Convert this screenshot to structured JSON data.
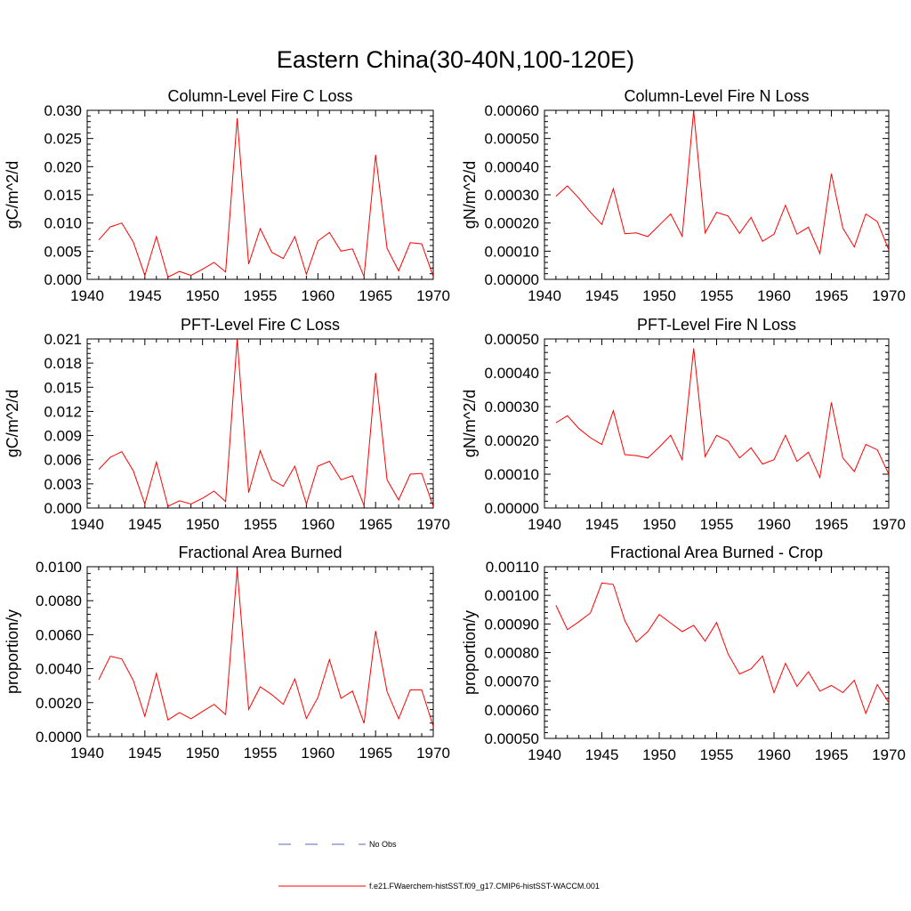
{
  "figure": {
    "title": "Eastern China(30-40N,100-120E)"
  },
  "legend": {
    "entries": [
      {
        "label": "No Obs",
        "color": "#5566bb",
        "dash": true
      },
      {
        "label": "f.e21.FWaerchem-histSST.f09_g17.CMIP6-histSST-WACCM.001",
        "color": "#ff0000",
        "dash": false
      }
    ]
  },
  "chart_data": [
    {
      "type": "line",
      "title": "Column-Level Fire C Loss",
      "ylabel": "gC/m^2/d",
      "xlim": [
        1940,
        1970
      ],
      "ylim": [
        0,
        0.03
      ],
      "xticks": [
        "1940",
        "1945",
        "1950",
        "1955",
        "1960",
        "1965",
        "1970"
      ],
      "yticks": [
        "0.000",
        "0.005",
        "0.010",
        "0.015",
        "0.020",
        "0.025",
        "0.030"
      ],
      "x": [
        1941,
        1942,
        1943,
        1944,
        1945,
        1946,
        1947,
        1948,
        1949,
        1950,
        1951,
        1952,
        1953,
        1954,
        1955,
        1956,
        1957,
        1958,
        1959,
        1960,
        1961,
        1962,
        1963,
        1964,
        1965,
        1966,
        1967,
        1968,
        1969,
        1970
      ],
      "series": [
        {
          "color": "#ff0000",
          "values": [
            0.007,
            0.0093,
            0.01,
            0.0066,
            0.0007,
            0.0076,
            0.0004,
            0.0014,
            0.0007,
            0.0018,
            0.003,
            0.0013,
            0.0286,
            0.0027,
            0.009,
            0.0048,
            0.0037,
            0.0076,
            0.0009,
            0.0068,
            0.0083,
            0.005,
            0.0054,
            0.0005,
            0.0221,
            0.0055,
            0.0015,
            0.0065,
            0.0063,
            0.0005
          ]
        }
      ]
    },
    {
      "type": "line",
      "title": "Column-Level Fire N Loss",
      "ylabel": "gN/m^2/d",
      "xlim": [
        1940,
        1970
      ],
      "ylim": [
        0,
        0.0006
      ],
      "xticks": [
        "1940",
        "1945",
        "1950",
        "1955",
        "1960",
        "1965",
        "1970"
      ],
      "yticks": [
        "0.00000",
        "0.00010",
        "0.00020",
        "0.00030",
        "0.00040",
        "0.00050",
        "0.00060"
      ],
      "x": [
        1941,
        1942,
        1943,
        1944,
        1945,
        1946,
        1947,
        1948,
        1949,
        1950,
        1951,
        1952,
        1953,
        1954,
        1955,
        1956,
        1957,
        1958,
        1959,
        1960,
        1961,
        1962,
        1963,
        1964,
        1965,
        1966,
        1967,
        1968,
        1969,
        1970
      ],
      "series": [
        {
          "color": "#ff0000",
          "values": [
            0.000295,
            0.000332,
            0.000288,
            0.000238,
            0.000195,
            0.000322,
            0.000162,
            0.000165,
            0.000152,
            0.000192,
            0.000232,
            0.000153,
            0.000598,
            0.000165,
            0.000238,
            0.000225,
            0.000163,
            0.00022,
            0.000135,
            0.00016,
            0.000263,
            0.00016,
            0.000185,
            9.2e-05,
            0.000375,
            0.000182,
            0.000115,
            0.000232,
            0.000205,
            0.000105
          ]
        }
      ]
    },
    {
      "type": "line",
      "title": "PFT-Level Fire C Loss",
      "ylabel": "gC/m^2/d",
      "xlim": [
        1940,
        1970
      ],
      "ylim": [
        0,
        0.021
      ],
      "xticks": [
        "1940",
        "1945",
        "1950",
        "1955",
        "1960",
        "1965",
        "1970"
      ],
      "yticks": [
        "0.000",
        "0.003",
        "0.006",
        "0.009",
        "0.012",
        "0.015",
        "0.018",
        "0.021"
      ],
      "x": [
        1941,
        1942,
        1943,
        1944,
        1945,
        1946,
        1947,
        1948,
        1949,
        1950,
        1951,
        1952,
        1953,
        1954,
        1955,
        1956,
        1957,
        1958,
        1959,
        1960,
        1961,
        1962,
        1963,
        1964,
        1965,
        1966,
        1967,
        1968,
        1969,
        1970
      ],
      "series": [
        {
          "color": "#ff0000",
          "values": [
            0.0048,
            0.0063,
            0.007,
            0.0046,
            0.0005,
            0.0057,
            0.0002,
            0.0009,
            0.0005,
            0.0012,
            0.0021,
            0.0008,
            0.021,
            0.0019,
            0.0071,
            0.0035,
            0.0027,
            0.0052,
            0.0005,
            0.0052,
            0.0058,
            0.0035,
            0.004,
            0.0003,
            0.0168,
            0.0035,
            0.001,
            0.0042,
            0.0043,
            0.0002
          ]
        }
      ]
    },
    {
      "type": "line",
      "title": "PFT-Level Fire N Loss",
      "ylabel": "gN/m^2/d",
      "xlim": [
        1940,
        1970
      ],
      "ylim": [
        0,
        0.0005
      ],
      "xticks": [
        "1940",
        "1945",
        "1950",
        "1955",
        "1960",
        "1965",
        "1970"
      ],
      "yticks": [
        "0.00000",
        "0.00010",
        "0.00020",
        "0.00030",
        "0.00040",
        "0.00050"
      ],
      "x": [
        1941,
        1942,
        1943,
        1944,
        1945,
        1946,
        1947,
        1948,
        1949,
        1950,
        1951,
        1952,
        1953,
        1954,
        1955,
        1956,
        1957,
        1958,
        1959,
        1960,
        1961,
        1962,
        1963,
        1964,
        1965,
        1966,
        1967,
        1968,
        1969,
        1970
      ],
      "series": [
        {
          "color": "#ff0000",
          "values": [
            0.000252,
            0.000273,
            0.000235,
            0.000208,
            0.000188,
            0.000288,
            0.000158,
            0.000155,
            0.000148,
            0.00018,
            0.000215,
            0.000143,
            0.000472,
            0.000152,
            0.000215,
            0.000198,
            0.000148,
            0.000178,
            0.00013,
            0.000143,
            0.000215,
            0.000138,
            0.000165,
            9e-05,
            0.000312,
            0.000148,
            0.000108,
            0.000188,
            0.000172,
            0.0001
          ]
        }
      ]
    },
    {
      "type": "line",
      "title": "Fractional Area Burned",
      "ylabel": "proportion/y",
      "xlim": [
        1940,
        1970
      ],
      "ylim": [
        0,
        0.01
      ],
      "xticks": [
        "1940",
        "1945",
        "1950",
        "1955",
        "1960",
        "1965",
        "1970"
      ],
      "yticks": [
        "0.0000",
        "0.0020",
        "0.0040",
        "0.0060",
        "0.0080",
        "0.0100"
      ],
      "x": [
        1941,
        1942,
        1943,
        1944,
        1945,
        1946,
        1947,
        1948,
        1949,
        1950,
        1951,
        1952,
        1953,
        1954,
        1955,
        1956,
        1957,
        1958,
        1959,
        1960,
        1961,
        1962,
        1963,
        1964,
        1965,
        1966,
        1967,
        1968,
        1969,
        1970
      ],
      "series": [
        {
          "color": "#ff0000",
          "values": [
            0.00335,
            0.00473,
            0.00457,
            0.0033,
            0.0012,
            0.00372,
            0.00098,
            0.00142,
            0.00105,
            0.00148,
            0.0019,
            0.0013,
            0.00985,
            0.0016,
            0.00293,
            0.00247,
            0.0019,
            0.0034,
            0.00107,
            0.0023,
            0.00453,
            0.00225,
            0.00268,
            0.00078,
            0.00622,
            0.00265,
            0.00105,
            0.00275,
            0.00275,
            0.0006
          ]
        }
      ]
    },
    {
      "type": "line",
      "title": "Fractional Area Burned - Crop",
      "ylabel": "proportion/y",
      "xlim": [
        1940,
        1970
      ],
      "ylim": [
        0.0005,
        0.0011
      ],
      "xticks": [
        "1940",
        "1945",
        "1950",
        "1955",
        "1960",
        "1965",
        "1970"
      ],
      "yticks": [
        "0.00050",
        "0.00060",
        "0.00070",
        "0.00080",
        "0.00090",
        "0.00100",
        "0.00110"
      ],
      "x": [
        1941,
        1942,
        1943,
        1944,
        1945,
        1946,
        1947,
        1948,
        1949,
        1950,
        1951,
        1952,
        1953,
        1954,
        1955,
        1956,
        1957,
        1958,
        1959,
        1960,
        1961,
        1962,
        1963,
        1964,
        1965,
        1966,
        1967,
        1968,
        1969,
        1970
      ],
      "series": [
        {
          "color": "#ff0000",
          "values": [
            0.000965,
            0.00088,
            0.000908,
            0.000938,
            0.001043,
            0.001038,
            0.000912,
            0.000837,
            0.000873,
            0.000933,
            0.000903,
            0.000873,
            0.000895,
            0.00084,
            0.000905,
            0.000795,
            0.000725,
            0.000743,
            0.000788,
            0.00066,
            0.000762,
            0.000682,
            0.000733,
            0.000665,
            0.000685,
            0.00066,
            0.000703,
            0.000587,
            0.000688,
            0.000625
          ]
        }
      ]
    }
  ]
}
